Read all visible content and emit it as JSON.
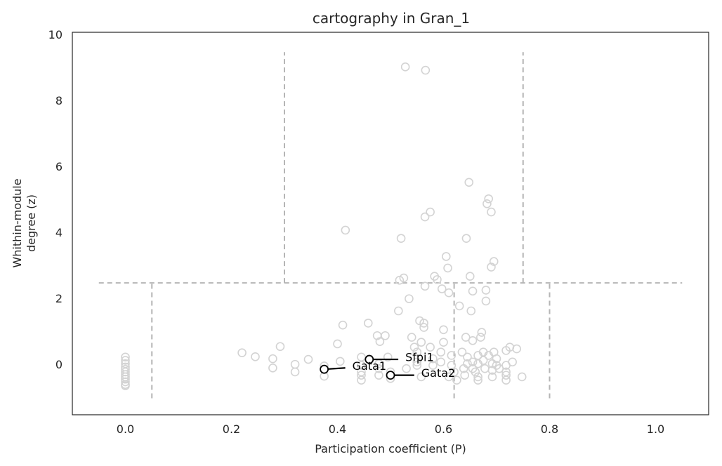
{
  "chart_data": {
    "type": "scatter",
    "title": "cartography in Gran_1",
    "xlabel": "Participation coefficient (P)",
    "ylabel_lines": [
      "Whithin-module",
      "degree (z)"
    ],
    "xlim": [
      -0.1,
      1.1
    ],
    "ylim": [
      -1.5,
      10.1
    ],
    "xticks": [
      0.0,
      0.2,
      0.4,
      0.6,
      0.8,
      1.0
    ],
    "xtick_labels": [
      "0.0",
      "0.2",
      "0.4",
      "0.6",
      "0.8",
      "1.0"
    ],
    "yticks": [
      0,
      2,
      4,
      6,
      8,
      10
    ],
    "ytick_labels": [
      "0",
      "2",
      "4",
      "6",
      "8",
      "10"
    ],
    "grid": false,
    "colors": {
      "points": "#d3d3d3",
      "highlight": "#000000",
      "guides": "#b5b5b5",
      "spine": "#262626",
      "text": "#262626"
    },
    "guides": [
      {
        "x1": -0.05,
        "y1": 2.5,
        "x2": 1.05,
        "y2": 2.5
      },
      {
        "x1": 0.05,
        "y1": -1.0,
        "x2": 0.05,
        "y2": 2.5
      },
      {
        "x1": 0.62,
        "y1": -1.0,
        "x2": 0.62,
        "y2": 2.5
      },
      {
        "x1": 0.8,
        "y1": -1.0,
        "x2": 0.8,
        "y2": 2.5
      },
      {
        "x1": 0.3,
        "y1": 2.5,
        "x2": 0.3,
        "y2": 9.5
      },
      {
        "x1": 0.75,
        "y1": 2.5,
        "x2": 0.75,
        "y2": 9.5
      }
    ],
    "points": [
      [
        0.0,
        0.25
      ],
      [
        0.0,
        0.15
      ],
      [
        0.0,
        0.05
      ],
      [
        0.0,
        -0.05
      ],
      [
        0.0,
        -0.12
      ],
      [
        0.0,
        -0.2
      ],
      [
        0.0,
        -0.28
      ],
      [
        0.0,
        -0.35
      ],
      [
        0.0,
        -0.42
      ],
      [
        0.0,
        -0.5
      ],
      [
        0.0,
        -0.58
      ],
      [
        0.0,
        -0.62
      ],
      [
        0.22,
        0.38
      ],
      [
        0.245,
        0.26
      ],
      [
        0.278,
        0.2
      ],
      [
        0.278,
        -0.08
      ],
      [
        0.292,
        0.57
      ],
      [
        0.32,
        0.03
      ],
      [
        0.32,
        -0.2
      ],
      [
        0.345,
        0.18
      ],
      [
        0.375,
        -0.02
      ],
      [
        0.375,
        -0.33
      ],
      [
        0.4,
        0.65
      ],
      [
        0.405,
        0.12
      ],
      [
        0.41,
        1.22
      ],
      [
        0.415,
        4.1
      ],
      [
        0.445,
        0.25
      ],
      [
        0.445,
        0.0
      ],
      [
        0.445,
        -0.2
      ],
      [
        0.445,
        -0.3
      ],
      [
        0.445,
        -0.45
      ],
      [
        0.458,
        1.28
      ],
      [
        0.475,
        0.9
      ],
      [
        0.478,
        0.05
      ],
      [
        0.478,
        -0.1
      ],
      [
        0.478,
        -0.3
      ],
      [
        0.48,
        0.72
      ],
      [
        0.49,
        0.9
      ],
      [
        0.495,
        0.25
      ],
      [
        0.5,
        -0.2
      ],
      [
        0.5,
        -0.4
      ],
      [
        0.515,
        1.65
      ],
      [
        0.517,
        2.58
      ],
      [
        0.52,
        3.85
      ],
      [
        0.525,
        2.65
      ],
      [
        0.528,
        9.05
      ],
      [
        0.53,
        -0.1
      ],
      [
        0.535,
        2.02
      ],
      [
        0.54,
        0.85
      ],
      [
        0.545,
        0.55
      ],
      [
        0.55,
        0.4
      ],
      [
        0.55,
        0.1
      ],
      [
        0.55,
        0.0
      ],
      [
        0.555,
        1.35
      ],
      [
        0.558,
        0.7
      ],
      [
        0.558,
        -0.35
      ],
      [
        0.563,
        1.28
      ],
      [
        0.563,
        1.15
      ],
      [
        0.565,
        2.4
      ],
      [
        0.565,
        4.5
      ],
      [
        0.566,
        8.95
      ],
      [
        0.575,
        4.65
      ],
      [
        0.575,
        0.55
      ],
      [
        0.58,
        0.2
      ],
      [
        0.58,
        0.0
      ],
      [
        0.583,
        2.7
      ],
      [
        0.588,
        2.6
      ],
      [
        0.595,
        0.4
      ],
      [
        0.595,
        0.1
      ],
      [
        0.597,
        2.32
      ],
      [
        0.6,
        1.08
      ],
      [
        0.6,
        0.7
      ],
      [
        0.605,
        3.3
      ],
      [
        0.608,
        2.95
      ],
      [
        0.61,
        2.2
      ],
      [
        0.61,
        -0.35
      ],
      [
        0.615,
        0.3
      ],
      [
        0.615,
        0.0
      ],
      [
        0.62,
        -0.2
      ],
      [
        0.625,
        -0.45
      ],
      [
        0.63,
        1.8
      ],
      [
        0.635,
        0.4
      ],
      [
        0.638,
        -0.1
      ],
      [
        0.64,
        -0.3
      ],
      [
        0.642,
        0.85
      ],
      [
        0.643,
        3.85
      ],
      [
        0.645,
        0.25
      ],
      [
        0.645,
        0.05
      ],
      [
        0.648,
        5.55
      ],
      [
        0.65,
        2.7
      ],
      [
        0.652,
        1.65
      ],
      [
        0.655,
        2.25
      ],
      [
        0.655,
        0.75
      ],
      [
        0.655,
        0.1
      ],
      [
        0.655,
        -0.1
      ],
      [
        0.66,
        -0.2
      ],
      [
        0.665,
        0.3
      ],
      [
        0.665,
        0.05
      ],
      [
        0.665,
        -0.35
      ],
      [
        0.665,
        -0.45
      ],
      [
        0.67,
        0.85
      ],
      [
        0.672,
        1.0
      ],
      [
        0.675,
        0.4
      ],
      [
        0.675,
        0.15
      ],
      [
        0.678,
        -0.1
      ],
      [
        0.68,
        2.28
      ],
      [
        0.68,
        1.95
      ],
      [
        0.682,
        4.9
      ],
      [
        0.685,
        5.05
      ],
      [
        0.685,
        0.3
      ],
      [
        0.69,
        2.98
      ],
      [
        0.69,
        4.65
      ],
      [
        0.692,
        0.05
      ],
      [
        0.692,
        -0.15
      ],
      [
        0.692,
        -0.35
      ],
      [
        0.695,
        3.15
      ],
      [
        0.695,
        0.4
      ],
      [
        0.7,
        0.2
      ],
      [
        0.7,
        0.0
      ],
      [
        0.705,
        -0.1
      ],
      [
        0.718,
        0.45
      ],
      [
        0.718,
        0.0
      ],
      [
        0.718,
        -0.2
      ],
      [
        0.718,
        -0.3
      ],
      [
        0.718,
        -0.45
      ],
      [
        0.725,
        0.55
      ],
      [
        0.73,
        0.1
      ],
      [
        0.738,
        0.5
      ],
      [
        0.748,
        -0.35
      ]
    ],
    "highlighted": [
      {
        "gene": "Sfpi1",
        "x": 0.46,
        "y": 0.18,
        "label_x": 0.52,
        "label_y": 0.18
      },
      {
        "gene": "Gata1",
        "x": 0.375,
        "y": -0.12,
        "label_x": 0.42,
        "label_y": -0.08
      },
      {
        "gene": "Gata2",
        "x": 0.5,
        "y": -0.3,
        "label_x": 0.55,
        "label_y": -0.3
      }
    ]
  }
}
